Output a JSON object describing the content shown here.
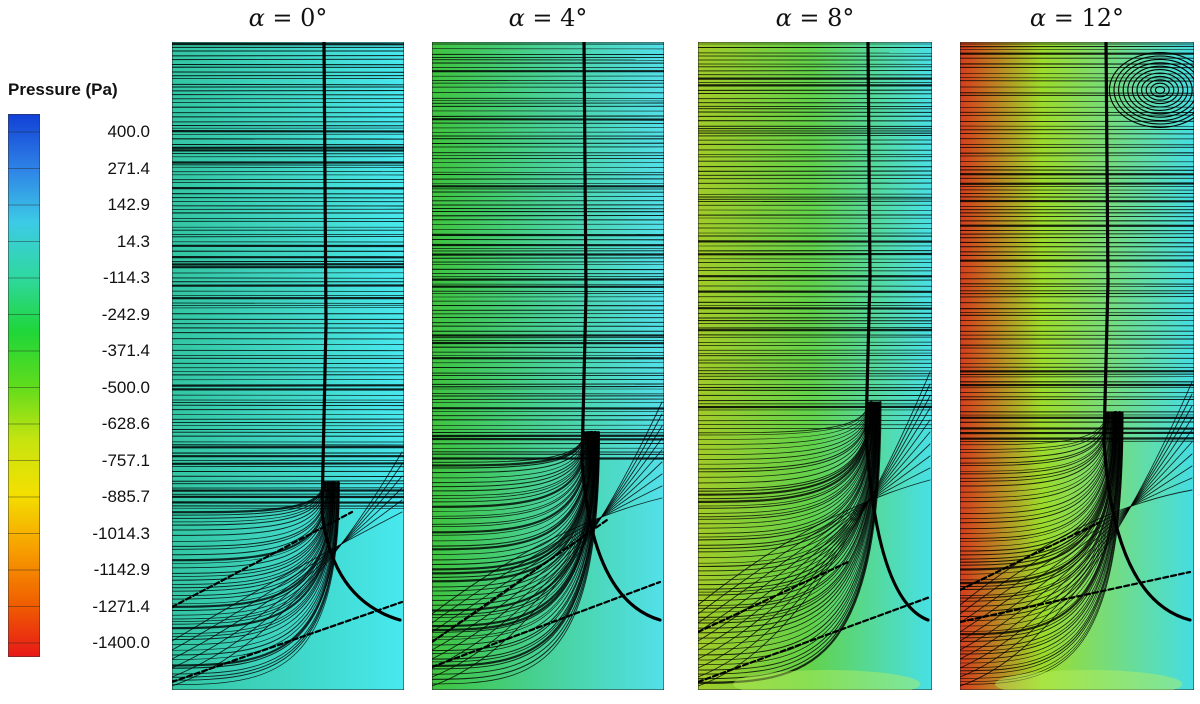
{
  "legend": {
    "title": "Pressure (Pa)",
    "ticks": [
      "400.0",
      "271.4",
      "142.9",
      "14.3",
      "-114.3",
      "-242.9",
      "-371.4",
      "-500.0",
      "-628.6",
      "-757.1",
      "-885.7",
      "-1014.3",
      "-1142.9",
      "-1271.4",
      "-1400.0"
    ],
    "colors": [
      "#1240d6",
      "#2e82e6",
      "#3ccbe6",
      "#2fd8a0",
      "#1fd63a",
      "#5edc1c",
      "#c6e410",
      "#f3e000",
      "#f7a000",
      "#f06000",
      "#e81818"
    ]
  },
  "panels": [
    {
      "alpha_symbol": "α",
      "label": "= 0°",
      "left": "#33c6a3",
      "right": "#48e8ef"
    },
    {
      "alpha_symbol": "α",
      "label": "= 4°",
      "left": "#3fc43e",
      "right": "#52e0ea"
    },
    {
      "alpha_symbol": "α",
      "label": "= 8°",
      "left": "#a2cc28",
      "right": "#48e0e6"
    },
    {
      "alpha_symbol": "α",
      "label": "= 12°",
      "left": "#d63c1c",
      "right": "#44dde4"
    }
  ]
}
